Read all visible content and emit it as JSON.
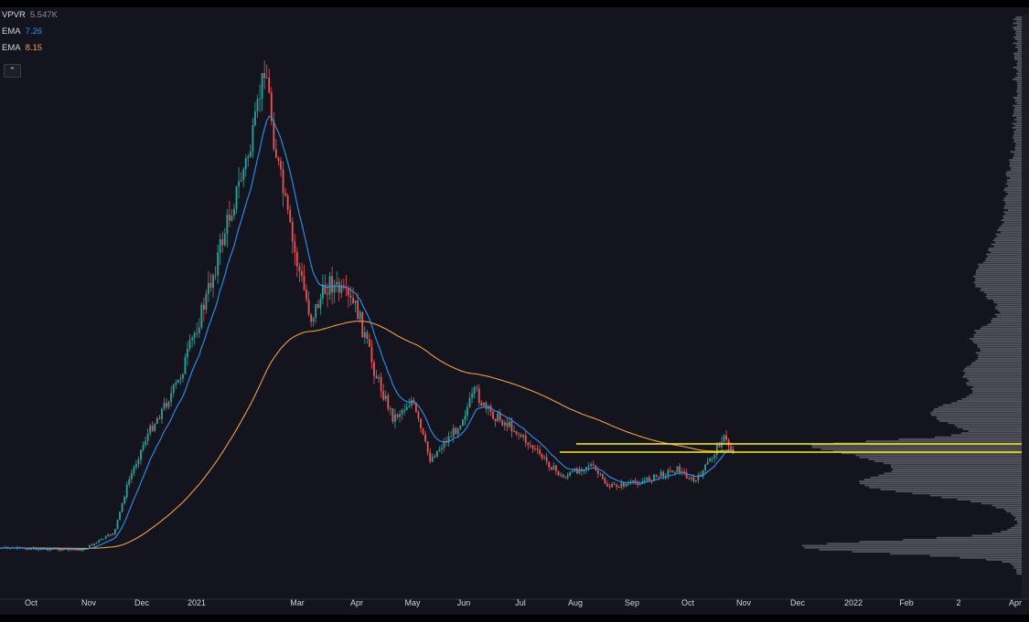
{
  "legend": {
    "vpvr": {
      "name": "VPVR",
      "value": "5.547K"
    },
    "ema_fast": {
      "name": "EMA",
      "value": "7.26"
    },
    "ema_slow": {
      "name": "EMA",
      "value": "8.15"
    },
    "collapse_icon": "chevron-up-icon"
  },
  "colors": {
    "background": "#14141f",
    "up": "#26a69a",
    "down": "#ef5350",
    "ema_fast": "#2196f3",
    "ema_slow": "#f0a03c",
    "level_lines": "#ffee00",
    "volume_profile": "#8a8d96"
  },
  "chart_data": {
    "type": "candlestick",
    "x_ticks": [
      "Oct",
      "Nov",
      "Dec",
      "2021",
      "Mar",
      "Apr",
      "May",
      "Jun",
      "Jul",
      "Aug",
      "Sep",
      "Oct",
      "Nov",
      "Dec",
      "2022",
      "Feb",
      "2",
      "Apr"
    ],
    "legend_placement": "top-left",
    "grid": false,
    "price_trend_keypoints": [
      {
        "date": "2020-09-15",
        "close": 3.2
      },
      {
        "date": "2020-11-20",
        "close": 3.3
      },
      {
        "date": "2020-12-05",
        "close": 11.0
      },
      {
        "date": "2021-01-10",
        "close": 22.0
      },
      {
        "date": "2021-02-05",
        "close": 40.0
      },
      {
        "date": "2021-02-10",
        "close": 35.0
      },
      {
        "date": "2021-03-05",
        "close": 25.0
      },
      {
        "date": "2021-04-10",
        "close": 17.0
      },
      {
        "date": "2021-05-15",
        "close": 9.0
      },
      {
        "date": "2021-06-05",
        "close": 14.0
      },
      {
        "date": "2021-08-05",
        "close": 6.5
      },
      {
        "date": "2021-09-15",
        "close": 6.0
      },
      {
        "date": "2021-10-20",
        "close": 8.8
      },
      {
        "date": "2021-10-26",
        "close": 7.3
      }
    ],
    "ema_fast": {
      "name": "EMA",
      "last": 7.26
    },
    "ema_slow": {
      "name": "EMA",
      "last": 8.15
    },
    "horizontal_levels": [
      8.5,
      8.0
    ],
    "volume_profile": {
      "name": "VPVR",
      "value": "5.547K"
    }
  }
}
